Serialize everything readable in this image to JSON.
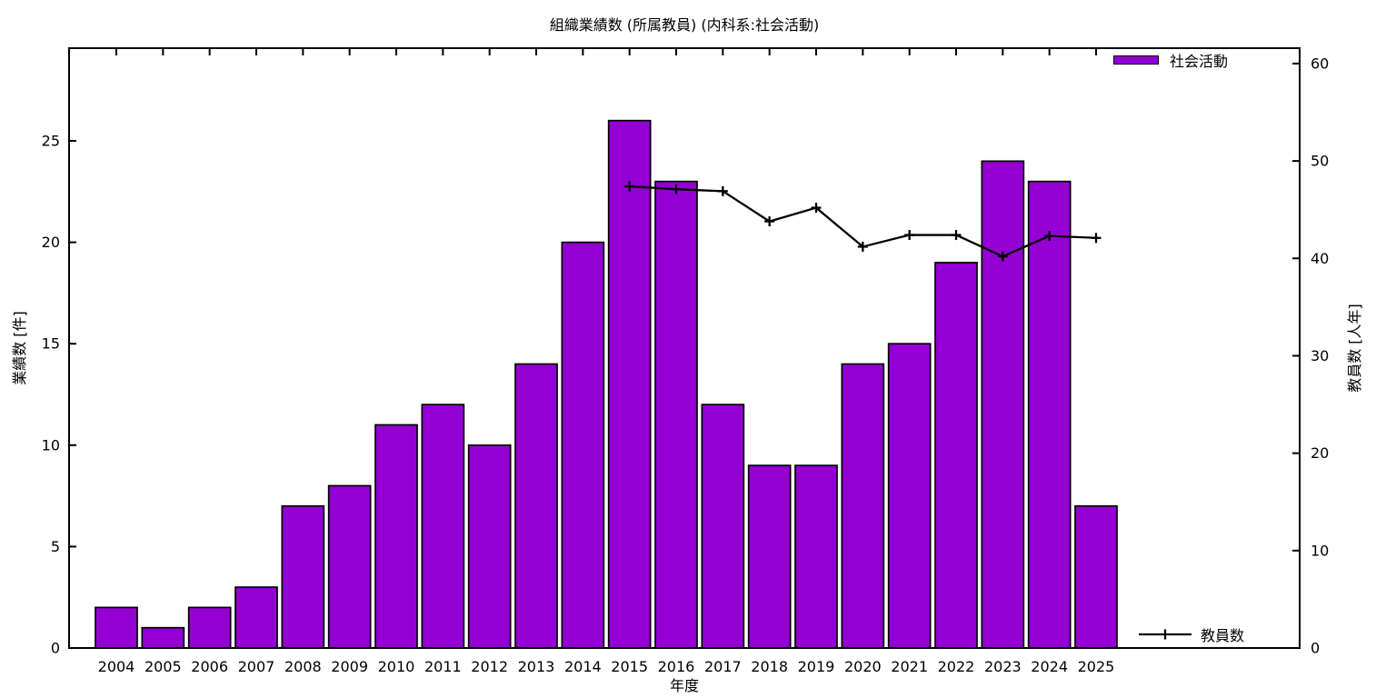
{
  "chart_data": {
    "type": "bar",
    "title": "組織業績数 (所属教員) (内科系:社会活動)",
    "xlabel": "年度",
    "ylabel": "業績数 [件]",
    "y2label": "教員数 [人年]",
    "categories": [
      "2004",
      "2005",
      "2006",
      "2007",
      "2008",
      "2009",
      "2010",
      "2011",
      "2012",
      "2013",
      "2014",
      "2015",
      "2016",
      "2017",
      "2018",
      "2019",
      "2020",
      "2021",
      "2022",
      "2023",
      "2024",
      "2025"
    ],
    "series": [
      {
        "name": "社会活動",
        "type": "bar",
        "axis": "y1",
        "color": "#9400d3",
        "values": [
          2,
          1,
          2,
          3,
          7,
          8,
          11,
          12,
          10,
          14,
          20,
          26,
          23,
          12,
          9,
          9,
          14,
          15,
          19,
          24,
          23,
          7
        ]
      },
      {
        "name": "教員数",
        "type": "line",
        "axis": "y2",
        "color": "#000000",
        "marker": "plus",
        "x": [
          "2015",
          "2016",
          "2017",
          "2018",
          "2019",
          "2020",
          "2021",
          "2022",
          "2023",
          "2024",
          "2025"
        ],
        "values": [
          47.4,
          47.1,
          46.9,
          43.8,
          45.2,
          41.2,
          42.4,
          42.4,
          40.2,
          42.3,
          42.1
        ]
      }
    ],
    "y_ticks": [
      0,
      5,
      10,
      15,
      20,
      25
    ],
    "y2_ticks": [
      0,
      10,
      20,
      30,
      40,
      50,
      60
    ],
    "ylim": [
      0,
      29.57
    ],
    "y2lim": [
      0,
      61.58
    ],
    "grid": false,
    "legend": {
      "bar_series_position": "top-right-inside",
      "line_series_position": "bottom-right-inside"
    }
  }
}
